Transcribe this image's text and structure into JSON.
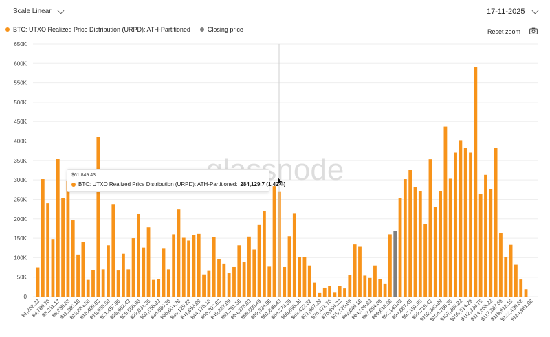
{
  "header": {
    "scale_label": "Scale Linear",
    "date_value": "17-11-2025",
    "reset_zoom_label": "Reset zoom"
  },
  "legend": [
    {
      "label": "BTC: UTXO Realized Price Distribution (URPD): ATH-Partitioned",
      "color": "#f7931a"
    },
    {
      "label": "Closing price",
      "color": "#7f7f7f"
    }
  ],
  "tooltip": {
    "x_value": "$61,849.43",
    "series_label": "BTC: UTXO Realized Price Distribution (URPD): ATH-Partitioned:",
    "value": "284,129.7 (1.42%)"
  },
  "watermark": "glassnode",
  "chart_data": {
    "type": "bar",
    "yticks": [
      "0",
      "50K",
      "100K",
      "150K",
      "200K",
      "250K",
      "300K",
      "350K",
      "400K",
      "450K",
      "500K",
      "550K",
      "600K",
      "650K"
    ],
    "ylim": [
      0,
      650000
    ],
    "xtick_labels": [
      "$1,262.23",
      "$3,786.70",
      "$6,311.17",
      "$8,835.63",
      "$11,360.10",
      "$13,884.56",
      "$16,409.03",
      "$18,933.50",
      "$21,457.96",
      "$23,982.43",
      "$26,506.90",
      "$29,031.36",
      "$31,555.83",
      "$34,080.30",
      "$36,604.76",
      "$39,129.23",
      "$41,653.69",
      "$44,178.16",
      "$46,702.63",
      "$49,227.09",
      "$51,751.56",
      "$54,276.03",
      "$56,800.49",
      "$59,324.96",
      "$61,849.43",
      "$64,373.89",
      "$66,898.36",
      "$69,422.82",
      "$71,947.29",
      "$74,471.76",
      "$76,996.22",
      "$79,520.69",
      "$82,045.16",
      "$84,569.62",
      "$87,094.09",
      "$89,618.56",
      "$92,143.02",
      "$94,667.49",
      "$97,191.95",
      "$99,716.42",
      "$102,240.89",
      "$104,765.35",
      "$107,289.82",
      "$109,814.29",
      "$112,338.75",
      "$114,863.22",
      "$117,387.69",
      "$119,912.15",
      "$122,436.62",
      "$124,961.08"
    ],
    "values": [
      75000,
      302000,
      240000,
      148000,
      354000,
      254000,
      298000,
      196000,
      108000,
      140000,
      43000,
      68000,
      411000,
      70000,
      132000,
      238000,
      67000,
      110000,
      70000,
      150000,
      212000,
      126000,
      178000,
      43000,
      45000,
      123000,
      70000,
      160000,
      224000,
      151000,
      144000,
      158000,
      161000,
      57000,
      66000,
      152000,
      97000,
      85000,
      60000,
      76000,
      132000,
      90000,
      154000,
      121000,
      184000,
      219000,
      77000,
      284130,
      269000,
      76000,
      155000,
      213000,
      102000,
      101000,
      80000,
      36000,
      9000,
      23000,
      27000,
      10000,
      28000,
      21000,
      56000,
      134000,
      128000,
      54000,
      48000,
      80000,
      45000,
      32000,
      160000,
      169000,
      254000,
      302000,
      326000,
      282000,
      272000,
      186000,
      353000,
      231000,
      272000,
      437000,
      303000,
      370000,
      402000,
      382000,
      370000,
      590000,
      264000,
      313000,
      276000,
      383000,
      163000,
      102000,
      133000,
      82000,
      44000,
      19000
    ],
    "closing_index": 71,
    "highlight_index": 47,
    "colors": {
      "bar": "#f7931a",
      "closing": "#7f7f7f",
      "grid": "#eeeeee"
    }
  }
}
